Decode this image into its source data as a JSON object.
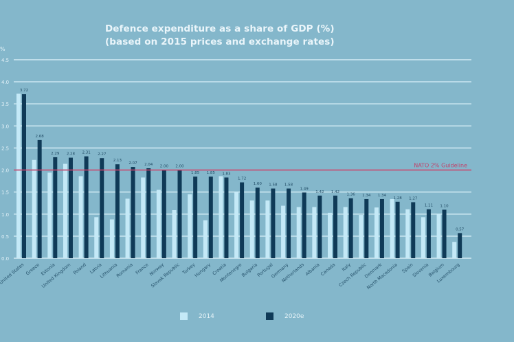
{
  "chart_data": {
    "type": "bar",
    "title": "Defence expenditure as a share of GDP (%)",
    "subtitle": "(based on 2015 prices and exchange rates)",
    "ylabel": "%",
    "xlabel": "",
    "ylim": [
      0,
      4.5
    ],
    "yticks": [
      "0.0",
      "0.5",
      "1.0",
      "1.5",
      "2.0",
      "2.5",
      "3.0",
      "3.5",
      "4.0",
      "4.5"
    ],
    "grid": true,
    "legend_position": "bottom",
    "categories": [
      "United States",
      "Greece",
      "Estonia",
      "United Kingdom",
      "Poland",
      "Latvia",
      "Lithuania",
      "Romania",
      "France",
      "Norway",
      "Slovak Republic",
      "Turkey",
      "Hungary",
      "Croatia",
      "Montenegro",
      "Bulgaria",
      "Portugal",
      "Germany",
      "Netherlands",
      "Albania",
      "Canada",
      "Italy",
      "Czech Republic",
      "Denmark",
      "North Macedonia",
      "Spain",
      "Slovenia",
      "Belgium",
      "Luxembourg"
    ],
    "series": [
      {
        "name": "2014",
        "color": "#c4e9f7",
        "values": [
          3.73,
          2.23,
          1.94,
          2.14,
          1.86,
          0.93,
          0.88,
          1.35,
          1.83,
          1.55,
          1.09,
          1.45,
          0.86,
          1.86,
          1.5,
          1.31,
          1.31,
          1.19,
          1.16,
          1.16,
          1.03,
          1.16,
          0.98,
          1.15,
          1.34,
          1.11,
          0.93,
          1.0,
          0.37
        ]
      },
      {
        "name": "2020e",
        "color": "#0f3a57",
        "values": [
          3.72,
          2.68,
          2.29,
          2.28,
          2.31,
          2.27,
          2.13,
          2.07,
          2.04,
          2.0,
          2.0,
          1.85,
          1.85,
          1.83,
          1.72,
          1.6,
          1.58,
          1.58,
          1.49,
          1.42,
          1.42,
          1.36,
          1.34,
          1.34,
          1.28,
          1.27,
          1.11,
          1.1,
          0.57
        ],
        "labels": [
          "3.72",
          "2.68",
          "2.29",
          "2.28",
          "2.31",
          "2.27",
          "2.13",
          "2.07",
          "2.04",
          "2.00",
          "2.00",
          "1.85",
          "1.85",
          "1.83",
          "1.72",
          "1.60",
          "1.58",
          "1.58",
          "1.49",
          "1.42",
          "1.42",
          "1.36",
          "1.34",
          "1.34",
          "1.28",
          "1.27",
          "1.11",
          "1.10",
          "0.57"
        ]
      }
    ],
    "annotations": [
      {
        "type": "hline",
        "value": 2.0,
        "label": "NATO 2% Guideline",
        "color": "#c0436a"
      }
    ]
  },
  "legend": [
    {
      "label": "2014",
      "color": "#c4e9f7"
    },
    {
      "label": "2020e",
      "color": "#0f3a57"
    }
  ]
}
